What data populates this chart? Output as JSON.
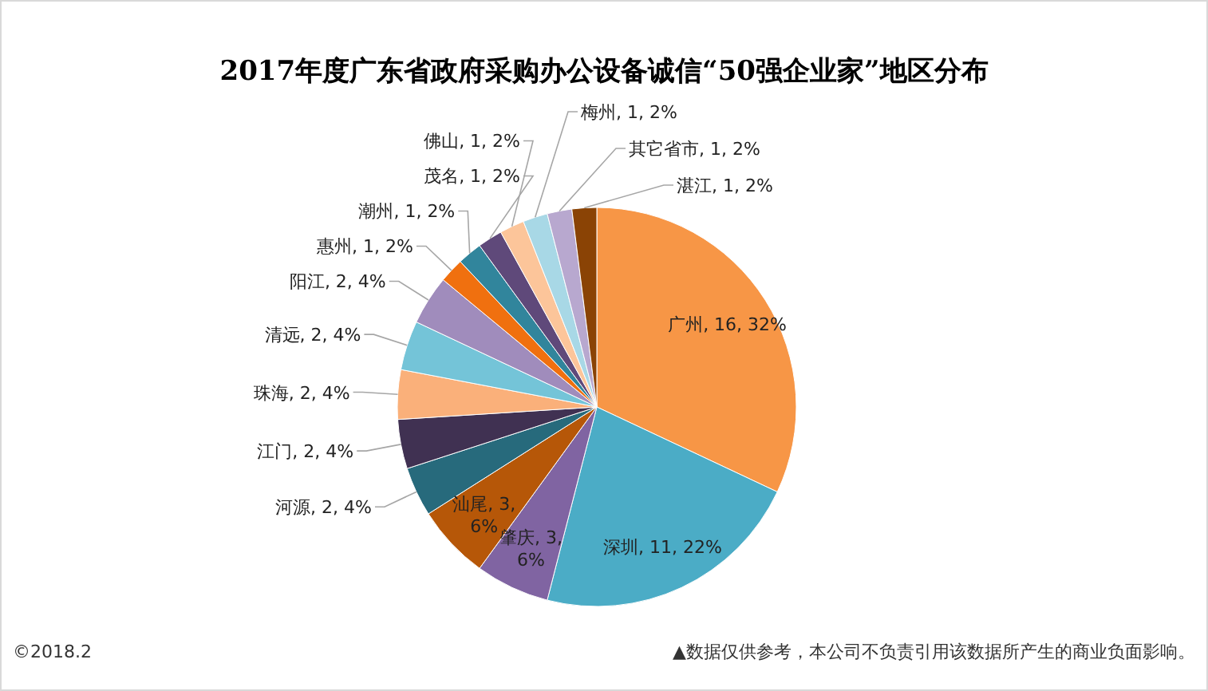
{
  "chart_data": {
    "type": "pie",
    "title": "2017年度广东省政府采购办公设备诚信“50强企业家”地区分布",
    "categories": [
      "广州",
      "深圳",
      "肇庆",
      "汕尾",
      "河源",
      "江门",
      "珠海",
      "清远",
      "阳江",
      "惠州",
      "潮州",
      "茂名",
      "佛山",
      "梅州",
      "其它省市",
      "湛江"
    ],
    "values": [
      16,
      11,
      3,
      3,
      2,
      2,
      2,
      2,
      2,
      1,
      1,
      1,
      1,
      1,
      1,
      1
    ],
    "value_labels": [
      "16, 32%",
      "11, 22%",
      "3, 6%",
      "3, 6%",
      "2, 4%",
      "2, 4%",
      "2, 4%",
      "2, 4%",
      "2, 4%",
      "1, 2%",
      "1, 2%",
      "1, 2%",
      "1, 2%",
      "1, 2%",
      "1, 2%",
      "1, 2%"
    ],
    "colors": [
      "#f79646",
      "#4bacc6",
      "#8064a2",
      "#b65708",
      "#276a7c",
      "#403152",
      "#fab07a",
      "#74c4d8",
      "#a08cbc",
      "#f0700f",
      "#31859c",
      "#5f497a",
      "#fcc59a",
      "#a8d8e6",
      "#b8a8cf",
      "#8a4305"
    ],
    "annotations": [
      "©2018.2",
      "▲数据仅供参考，本公司不负责引用该数据所产生的商业负面影响。"
    ]
  }
}
